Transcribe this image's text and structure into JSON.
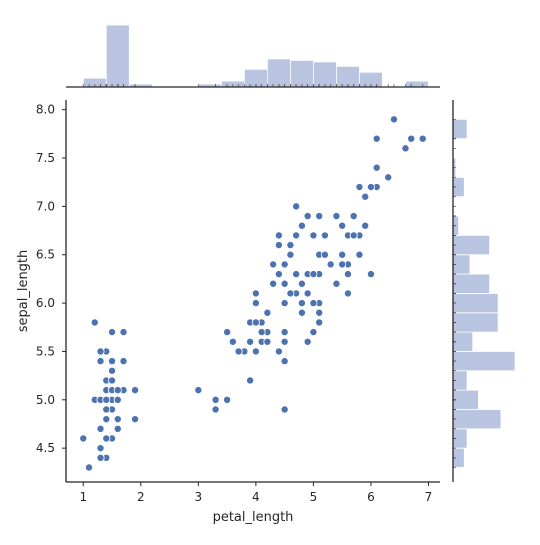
{
  "chart_data": {
    "type": "scatter",
    "subtype": "jointplot",
    "xlabel": "petal_length",
    "ylabel": "sepal_length",
    "xlim": [
      0.7,
      7.2
    ],
    "ylim": [
      4.15,
      8.1
    ],
    "x_ticks": [
      1,
      2,
      3,
      4,
      5,
      6,
      7
    ],
    "y_ticks": [
      4.5,
      5.0,
      5.5,
      6.0,
      6.5,
      7.0,
      7.5,
      8.0
    ],
    "x_tick_labels": [
      "1",
      "2",
      "3",
      "4",
      "5",
      "6",
      "7"
    ],
    "y_tick_labels": [
      "4.5",
      "5.0",
      "5.5",
      "6.0",
      "6.5",
      "7.0",
      "7.5",
      "8.0"
    ],
    "marker_color": "#4c72b0",
    "histogram_color": "#b8c4e0",
    "grid": false,
    "points": [
      [
        1.4,
        5.1
      ],
      [
        1.4,
        4.9
      ],
      [
        1.3,
        4.7
      ],
      [
        1.5,
        4.6
      ],
      [
        1.4,
        5.0
      ],
      [
        1.7,
        5.4
      ],
      [
        1.4,
        4.6
      ],
      [
        1.5,
        5.0
      ],
      [
        1.4,
        4.4
      ],
      [
        1.5,
        4.9
      ],
      [
        1.5,
        5.4
      ],
      [
        1.6,
        4.8
      ],
      [
        1.4,
        4.8
      ],
      [
        1.1,
        4.3
      ],
      [
        1.2,
        5.8
      ],
      [
        1.5,
        5.7
      ],
      [
        1.3,
        5.4
      ],
      [
        1.4,
        5.1
      ],
      [
        1.7,
        5.7
      ],
      [
        1.5,
        5.1
      ],
      [
        1.7,
        5.4
      ],
      [
        1.5,
        5.1
      ],
      [
        1.0,
        4.6
      ],
      [
        1.7,
        5.1
      ],
      [
        1.9,
        4.8
      ],
      [
        1.6,
        5.0
      ],
      [
        1.6,
        5.0
      ],
      [
        1.5,
        5.2
      ],
      [
        1.4,
        5.2
      ],
      [
        1.6,
        4.7
      ],
      [
        1.6,
        4.8
      ],
      [
        1.5,
        5.4
      ],
      [
        1.5,
        5.2
      ],
      [
        1.4,
        5.5
      ],
      [
        1.5,
        4.9
      ],
      [
        1.2,
        5.0
      ],
      [
        1.3,
        5.5
      ],
      [
        1.4,
        4.9
      ],
      [
        1.3,
        4.4
      ],
      [
        1.5,
        5.1
      ],
      [
        1.3,
        5.0
      ],
      [
        1.3,
        4.5
      ],
      [
        1.3,
        4.4
      ],
      [
        1.6,
        5.0
      ],
      [
        1.9,
        5.1
      ],
      [
        1.4,
        4.8
      ],
      [
        1.6,
        5.1
      ],
      [
        1.4,
        4.6
      ],
      [
        1.5,
        5.3
      ],
      [
        1.4,
        5.0
      ],
      [
        4.7,
        7.0
      ],
      [
        4.5,
        6.4
      ],
      [
        4.9,
        6.9
      ],
      [
        4.0,
        5.5
      ],
      [
        4.6,
        6.5
      ],
      [
        4.5,
        5.7
      ],
      [
        4.7,
        6.3
      ],
      [
        3.3,
        4.9
      ],
      [
        4.6,
        6.6
      ],
      [
        3.9,
        5.2
      ],
      [
        3.5,
        5.0
      ],
      [
        4.2,
        5.9
      ],
      [
        4.0,
        6.0
      ],
      [
        4.7,
        6.1
      ],
      [
        3.6,
        5.6
      ],
      [
        4.4,
        6.7
      ],
      [
        4.5,
        5.6
      ],
      [
        4.1,
        5.8
      ],
      [
        4.5,
        6.2
      ],
      [
        3.9,
        5.6
      ],
      [
        4.8,
        5.9
      ],
      [
        4.0,
        6.1
      ],
      [
        4.9,
        6.3
      ],
      [
        4.7,
        6.1
      ],
      [
        4.3,
        6.4
      ],
      [
        4.4,
        6.6
      ],
      [
        4.8,
        6.8
      ],
      [
        5.0,
        6.7
      ],
      [
        4.5,
        6.0
      ],
      [
        3.5,
        5.7
      ],
      [
        3.8,
        5.5
      ],
      [
        3.7,
        5.5
      ],
      [
        3.9,
        5.8
      ],
      [
        5.1,
        6.0
      ],
      [
        4.5,
        5.4
      ],
      [
        4.5,
        6.0
      ],
      [
        4.7,
        6.7
      ],
      [
        4.4,
        6.3
      ],
      [
        4.1,
        5.6
      ],
      [
        4.0,
        5.5
      ],
      [
        4.4,
        5.5
      ],
      [
        4.6,
        6.1
      ],
      [
        4.0,
        5.8
      ],
      [
        3.3,
        5.0
      ],
      [
        4.2,
        5.6
      ],
      [
        4.2,
        5.7
      ],
      [
        4.2,
        5.7
      ],
      [
        4.3,
        6.2
      ],
      [
        3.0,
        5.1
      ],
      [
        4.1,
        5.7
      ],
      [
        6.0,
        6.3
      ],
      [
        5.1,
        5.8
      ],
      [
        5.9,
        7.1
      ],
      [
        5.6,
        6.3
      ],
      [
        5.8,
        6.5
      ],
      [
        6.6,
        7.6
      ],
      [
        4.5,
        4.9
      ],
      [
        6.3,
        7.3
      ],
      [
        5.8,
        6.7
      ],
      [
        6.1,
        7.2
      ],
      [
        5.1,
        6.5
      ],
      [
        5.3,
        6.4
      ],
      [
        5.5,
        6.8
      ],
      [
        5.0,
        5.7
      ],
      [
        5.1,
        5.8
      ],
      [
        5.3,
        6.4
      ],
      [
        5.5,
        6.5
      ],
      [
        6.7,
        7.7
      ],
      [
        6.9,
        7.7
      ],
      [
        5.0,
        6.0
      ],
      [
        5.7,
        6.9
      ],
      [
        4.9,
        5.6
      ],
      [
        6.7,
        7.7
      ],
      [
        4.9,
        6.3
      ],
      [
        5.7,
        6.7
      ],
      [
        6.0,
        7.2
      ],
      [
        4.8,
        6.2
      ],
      [
        4.9,
        6.1
      ],
      [
        5.6,
        6.4
      ],
      [
        5.8,
        7.2
      ],
      [
        6.1,
        7.4
      ],
      [
        6.4,
        7.9
      ],
      [
        5.6,
        6.4
      ],
      [
        5.1,
        6.3
      ],
      [
        5.6,
        6.1
      ],
      [
        6.1,
        7.7
      ],
      [
        5.6,
        6.3
      ],
      [
        5.5,
        6.4
      ],
      [
        4.8,
        6.0
      ],
      [
        5.4,
        6.9
      ],
      [
        5.6,
        6.7
      ],
      [
        5.1,
        6.9
      ],
      [
        5.1,
        5.8
      ],
      [
        5.9,
        6.8
      ],
      [
        5.7,
        6.7
      ],
      [
        5.2,
        6.7
      ],
      [
        5.0,
        6.3
      ],
      [
        5.2,
        6.5
      ],
      [
        5.4,
        6.2
      ],
      [
        5.1,
        5.9
      ]
    ],
    "x_histogram": {
      "bins": [
        [
          1.0,
          1.4
        ],
        [
          1.4,
          1.8
        ],
        [
          1.8,
          2.2
        ],
        [
          2.2,
          2.6
        ],
        [
          2.6,
          3.0
        ],
        [
          3.0,
          3.4
        ],
        [
          3.4,
          3.8
        ],
        [
          3.8,
          4.2
        ],
        [
          4.2,
          4.6
        ],
        [
          4.6,
          5.0
        ],
        [
          5.0,
          5.4
        ],
        [
          5.4,
          5.8
        ],
        [
          5.8,
          6.2
        ],
        [
          6.2,
          6.6
        ],
        [
          6.6,
          7.0
        ]
      ],
      "counts": [
        6,
        42,
        2,
        0,
        0,
        2,
        4,
        12,
        19,
        18,
        17,
        14,
        10,
        0,
        4
      ]
    },
    "y_histogram": {
      "bins": [
        [
          4.3,
          4.5
        ],
        [
          4.5,
          4.7
        ],
        [
          4.7,
          4.9
        ],
        [
          4.9,
          5.1
        ],
        [
          5.1,
          5.3
        ],
        [
          5.3,
          5.5
        ],
        [
          5.5,
          5.7
        ],
        [
          5.7,
          5.9
        ],
        [
          5.9,
          6.1
        ],
        [
          6.1,
          6.3
        ],
        [
          6.3,
          6.5
        ],
        [
          6.5,
          6.7
        ],
        [
          6.7,
          6.9
        ],
        [
          6.9,
          7.1
        ],
        [
          7.1,
          7.3
        ],
        [
          7.3,
          7.5
        ],
        [
          7.5,
          7.7
        ],
        [
          7.7,
          7.9
        ]
      ],
      "counts": [
        4,
        5,
        17,
        9,
        5,
        22,
        7,
        16,
        16,
        13,
        6,
        13,
        2,
        0,
        4,
        1,
        0,
        5
      ]
    }
  }
}
